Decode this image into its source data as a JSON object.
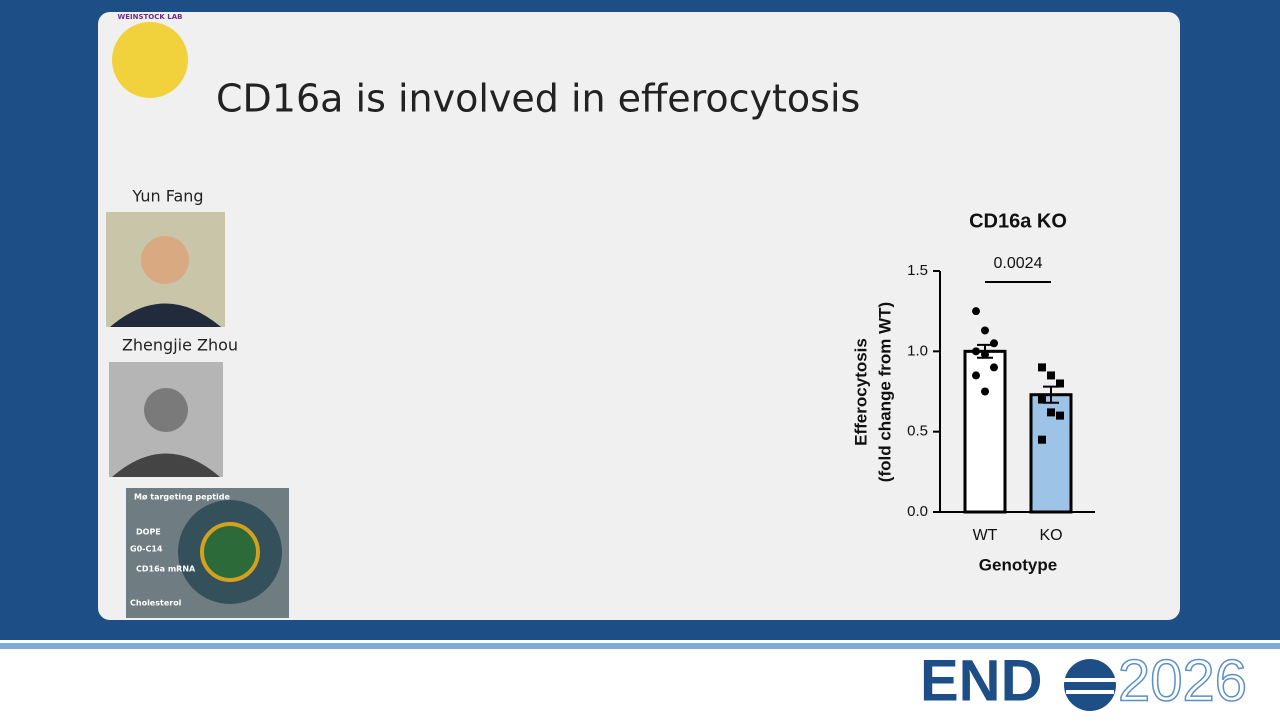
{
  "slide": {
    "title": "CD16a is involved in efferocytosis",
    "lab_logo": "WEINSTOCK LAB",
    "people": [
      "Yun Fang",
      "Zhengjie Zhou"
    ],
    "nanoparticle_labels": [
      "Mø targeting peptide",
      "DOPE",
      "G0-C14",
      "CD16a mRNA",
      "Cholesterol"
    ]
  },
  "footer": {
    "logo_left": "END",
    "logo_right": "2026"
  },
  "chart_data": {
    "type": "bar",
    "title": "CD16a KO",
    "categories": [
      "WT",
      "KO"
    ],
    "values": [
      1.0,
      0.73
    ],
    "errors": [
      0.04,
      0.05
    ],
    "colors": [
      "#ffffff",
      "#9dc3e6"
    ],
    "markers": [
      "circle",
      "square"
    ],
    "points": [
      [
        1.25,
        1.13,
        1.05,
        1.0,
        0.98,
        0.9,
        0.85,
        0.75
      ],
      [
        0.9,
        0.85,
        0.8,
        0.7,
        0.62,
        0.6,
        0.45
      ]
    ],
    "annotation": "0.0024",
    "xlabel": "Genotype",
    "ylabel": [
      "Efferocytosis",
      "(fold change from WT)"
    ],
    "ylim": [
      0,
      1.5
    ],
    "yticks": [
      {
        "value": 0,
        "label": "0.0"
      },
      0.5,
      {
        "value": 1,
        "label": "1.0"
      },
      1.5
    ]
  }
}
